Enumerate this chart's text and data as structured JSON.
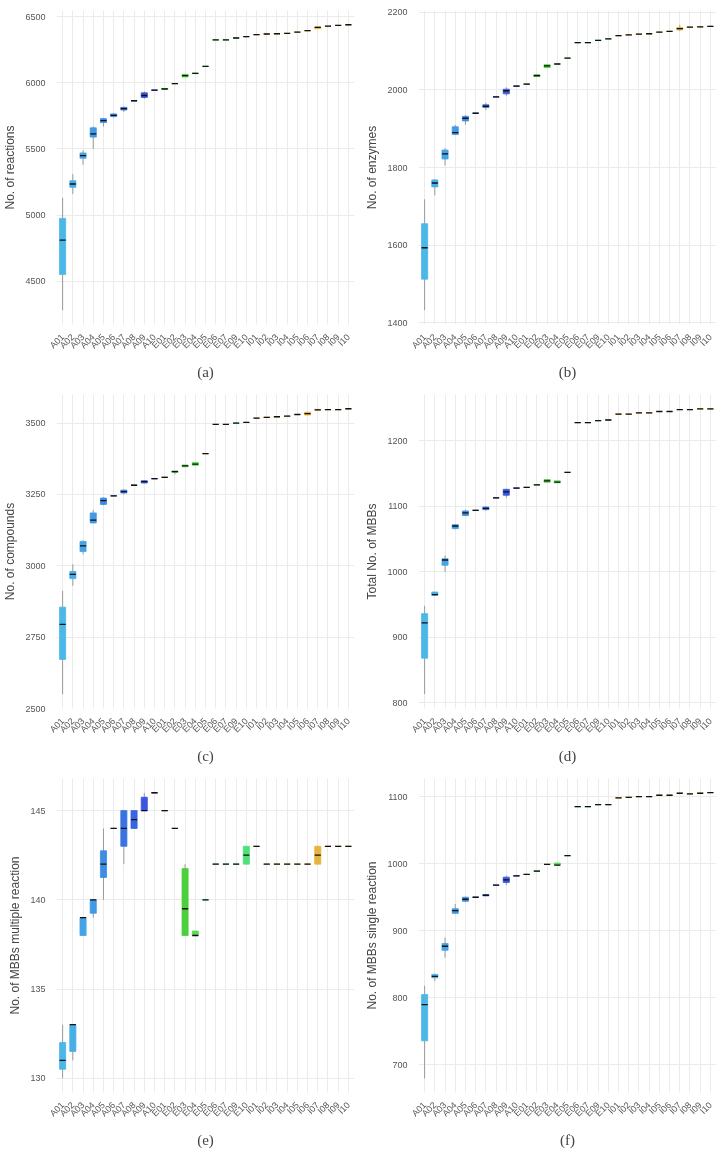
{
  "chart_data": [
    {
      "type": "box",
      "ylabel": "No. of reactions",
      "annotations": [
        "(a)"
      ],
      "categories": [
        "A01",
        "A02",
        "A03",
        "A04",
        "A05",
        "A06",
        "A07",
        "A08",
        "A09",
        "A10",
        "E01",
        "E02",
        "E03",
        "E04",
        "E05",
        "E06",
        "E07",
        "E09",
        "E10",
        "I01",
        "I02",
        "I03",
        "I04",
        "I05",
        "I06",
        "I07",
        "I08",
        "I09",
        "I10"
      ],
      "colors": [
        "#4bb8e8",
        "#48aee6",
        "#45a4e5",
        "#4299e4",
        "#3f8de3",
        "#3c80e2",
        "#3a73e1",
        "#3866e1",
        "#3a55e0",
        "#3b4ae0",
        "#2e9e2e",
        "#38b038",
        "#4ccf3c",
        "#55dd50",
        "#5ae060",
        "#5ce068",
        "#5ce070",
        "#5ce078",
        "#50e07a",
        "#e8a838",
        "#e8ac3c",
        "#e8b040",
        "#e8b040",
        "#e8b444",
        "#e6b444",
        "#e6b440",
        "#deb048",
        "#d8b04c",
        "#d4b050"
      ],
      "ylim": [
        4172,
        6548
      ],
      "yticks": [
        4500,
        5000,
        5500,
        6000,
        6500
      ],
      "grid": true,
      "boxes": [
        {
          "low": 4280,
          "q1": 4550,
          "median": 4810,
          "q3": 4975,
          "high": 5130
        },
        {
          "low": 5160,
          "q1": 5210,
          "median": 5235,
          "q3": 5260,
          "high": 5310
        },
        {
          "low": 5380,
          "q1": 5430,
          "median": 5450,
          "q3": 5470,
          "high": 5490
        },
        {
          "low": 5500,
          "q1": 5590,
          "median": 5615,
          "q3": 5660,
          "high": 5670
        },
        {
          "low": 5670,
          "q1": 5700,
          "median": 5715,
          "q3": 5730,
          "high": 5735
        },
        {
          "low": 5740,
          "q1": 5745,
          "median": 5755,
          "q3": 5765,
          "high": 5770
        },
        {
          "low": 5780,
          "q1": 5795,
          "median": 5805,
          "q3": 5815,
          "high": 5820
        },
        {
          "low": 5865,
          "q1": 5865,
          "median": 5865,
          "q3": 5865,
          "high": 5865
        },
        {
          "low": 5880,
          "q1": 5890,
          "median": 5905,
          "q3": 5925,
          "high": 5935
        },
        {
          "low": 5945,
          "q1": 5945,
          "median": 5945,
          "q3": 5945,
          "high": 5945
        },
        {
          "low": 5950,
          "q1": 5950,
          "median": 5955,
          "q3": 5958,
          "high": 5958
        },
        {
          "low": 5995,
          "q1": 5995,
          "median": 5995,
          "q3": 5995,
          "high": 5995
        },
        {
          "low": 6045,
          "q1": 6045,
          "median": 6055,
          "q3": 6065,
          "high": 6065
        },
        {
          "low": 6070,
          "q1": 6070,
          "median": 6072,
          "q3": 6075,
          "high": 6075
        },
        {
          "low": 6125,
          "q1": 6125,
          "median": 6125,
          "q3": 6125,
          "high": 6125
        },
        {
          "low": 6325,
          "q1": 6325,
          "median": 6325,
          "q3": 6325,
          "high": 6325
        },
        {
          "low": 6325,
          "q1": 6325,
          "median": 6325,
          "q3": 6325,
          "high": 6325
        },
        {
          "low": 6340,
          "q1": 6340,
          "median": 6340,
          "q3": 6340,
          "high": 6340
        },
        {
          "low": 6350,
          "q1": 6350,
          "median": 6350,
          "q3": 6350,
          "high": 6350
        },
        {
          "low": 6365,
          "q1": 6365,
          "median": 6365,
          "q3": 6365,
          "high": 6365
        },
        {
          "low": 6370,
          "q1": 6370,
          "median": 6370,
          "q3": 6370,
          "high": 6370
        },
        {
          "low": 6372,
          "q1": 6372,
          "median": 6372,
          "q3": 6372,
          "high": 6372
        },
        {
          "low": 6375,
          "q1": 6375,
          "median": 6375,
          "q3": 6375,
          "high": 6375
        },
        {
          "low": 6385,
          "q1": 6385,
          "median": 6385,
          "q3": 6385,
          "high": 6385
        },
        {
          "low": 6395,
          "q1": 6395,
          "median": 6395,
          "q3": 6395,
          "high": 6395
        },
        {
          "low": 6410,
          "q1": 6410,
          "median": 6420,
          "q3": 6425,
          "high": 6425
        },
        {
          "low": 6430,
          "q1": 6430,
          "median": 6430,
          "q3": 6430,
          "high": 6430
        },
        {
          "low": 6435,
          "q1": 6435,
          "median": 6435,
          "q3": 6435,
          "high": 6435
        },
        {
          "low": 6440,
          "q1": 6440,
          "median": 6440,
          "q3": 6440,
          "high": 6440
        }
      ]
    },
    {
      "type": "box",
      "ylabel": "No. of enzymes",
      "annotations": [
        "(b)"
      ],
      "categories": [
        "A01",
        "A02",
        "A03",
        "A04",
        "A05",
        "A06",
        "A07",
        "A08",
        "A09",
        "A10",
        "E01",
        "E02",
        "E03",
        "E04",
        "E05",
        "E06",
        "E07",
        "E09",
        "E10",
        "I01",
        "I02",
        "I03",
        "I04",
        "I05",
        "I06",
        "I07",
        "I08",
        "I09",
        "I10"
      ],
      "colors": [
        "#4bb8e8",
        "#48aee6",
        "#45a4e5",
        "#4299e4",
        "#3f8de3",
        "#3c80e2",
        "#3a73e1",
        "#3866e1",
        "#3a55e0",
        "#3b4ae0",
        "#2e9e2e",
        "#38b038",
        "#4ccf3c",
        "#55dd50",
        "#5ae060",
        "#5ce068",
        "#5ce070",
        "#5ce078",
        "#50e07a",
        "#e8a838",
        "#e8ac3c",
        "#e8b040",
        "#e8b040",
        "#e8b444",
        "#e6b444",
        "#e6b440",
        "#deb048",
        "#d8b04c",
        "#d4b050"
      ],
      "ylim": [
        1395,
        2205
      ],
      "yticks": [
        1400,
        1600,
        1800,
        2000,
        2200
      ],
      "grid": true,
      "boxes": [
        {
          "low": 1432,
          "q1": 1512,
          "median": 1593,
          "q3": 1655,
          "high": 1718
        },
        {
          "low": 1728,
          "q1": 1750,
          "median": 1760,
          "q3": 1768,
          "high": 1770
        },
        {
          "low": 1805,
          "q1": 1822,
          "median": 1835,
          "q3": 1845,
          "high": 1850
        },
        {
          "low": 1885,
          "q1": 1885,
          "median": 1890,
          "q3": 1905,
          "high": 1910
        },
        {
          "low": 1910,
          "q1": 1920,
          "median": 1927,
          "q3": 1932,
          "high": 1935
        },
        {
          "low": 1940,
          "q1": 1940,
          "median": 1940,
          "q3": 1940,
          "high": 1940
        },
        {
          "low": 1948,
          "q1": 1955,
          "median": 1958,
          "q3": 1962,
          "high": 1967
        },
        {
          "low": 1982,
          "q1": 1982,
          "median": 1982,
          "q3": 1982,
          "high": 1982
        },
        {
          "low": 1985,
          "q1": 1990,
          "median": 1998,
          "q3": 2002,
          "high": 2007
        },
        {
          "low": 2010,
          "q1": 2010,
          "median": 2010,
          "q3": 2010,
          "high": 2010
        },
        {
          "low": 2015,
          "q1": 2015,
          "median": 2015,
          "q3": 2015,
          "high": 2015
        },
        {
          "low": 2035,
          "q1": 2035,
          "median": 2037,
          "q3": 2039,
          "high": 2039
        },
        {
          "low": 2058,
          "q1": 2058,
          "median": 2062,
          "q3": 2065,
          "high": 2065
        },
        {
          "low": 2067,
          "q1": 2067,
          "median": 2067,
          "q3": 2067,
          "high": 2067
        },
        {
          "low": 2082,
          "q1": 2082,
          "median": 2082,
          "q3": 2082,
          "high": 2082
        },
        {
          "low": 2122,
          "q1": 2122,
          "median": 2122,
          "q3": 2122,
          "high": 2122
        },
        {
          "low": 2122,
          "q1": 2122,
          "median": 2122,
          "q3": 2122,
          "high": 2122
        },
        {
          "low": 2128,
          "q1": 2128,
          "median": 2128,
          "q3": 2128,
          "high": 2128
        },
        {
          "low": 2132,
          "q1": 2132,
          "median": 2132,
          "q3": 2132,
          "high": 2132
        },
        {
          "low": 2140,
          "q1": 2140,
          "median": 2140,
          "q3": 2140,
          "high": 2140
        },
        {
          "low": 2142,
          "q1": 2142,
          "median": 2142,
          "q3": 2142,
          "high": 2142
        },
        {
          "low": 2144,
          "q1": 2144,
          "median": 2144,
          "q3": 2144,
          "high": 2144
        },
        {
          "low": 2145,
          "q1": 2145,
          "median": 2145,
          "q3": 2145,
          "high": 2145
        },
        {
          "low": 2149,
          "q1": 2149,
          "median": 2149,
          "q3": 2149,
          "high": 2149
        },
        {
          "low": 2151,
          "q1": 2151,
          "median": 2151,
          "q3": 2151,
          "high": 2151
        },
        {
          "low": 2152,
          "q1": 2155,
          "median": 2158,
          "q3": 2161,
          "high": 2168
        },
        {
          "low": 2162,
          "q1": 2162,
          "median": 2162,
          "q3": 2162,
          "high": 2162
        },
        {
          "low": 2163,
          "q1": 2163,
          "median": 2163,
          "q3": 2163,
          "high": 2163
        },
        {
          "low": 2164,
          "q1": 2164,
          "median": 2164,
          "q3": 2164,
          "high": 2164
        }
      ]
    },
    {
      "type": "box",
      "ylabel": "No. of compounds",
      "annotations": [
        "(c)"
      ],
      "categories": [
        "A01",
        "A02",
        "A03",
        "A04",
        "A05",
        "A06",
        "A07",
        "A08",
        "A09",
        "A10",
        "E01",
        "E02",
        "E03",
        "E04",
        "E05",
        "E06",
        "E07",
        "E09",
        "E10",
        "I01",
        "I02",
        "I03",
        "I04",
        "I05",
        "I06",
        "I07",
        "I08",
        "I09",
        "I10"
      ],
      "colors": [
        "#4bb8e8",
        "#48aee6",
        "#45a4e5",
        "#4299e4",
        "#3f8de3",
        "#3c80e2",
        "#3a73e1",
        "#3866e1",
        "#3a55e0",
        "#3b4ae0",
        "#2e9e2e",
        "#38b038",
        "#4ccf3c",
        "#55dd50",
        "#5ae060",
        "#5ce068",
        "#5ce070",
        "#5ce078",
        "#50e07a",
        "#e8a838",
        "#e8ac3c",
        "#e8b040",
        "#e8b040",
        "#e8b444",
        "#e6b444",
        "#e6b440",
        "#deb048",
        "#d8b04c",
        "#d4b050"
      ],
      "ylim": [
        2500,
        3600
      ],
      "yticks": [
        2500,
        2750,
        3000,
        3250,
        3500
      ],
      "grid": true,
      "boxes": [
        {
          "low": 2550,
          "q1": 2672,
          "median": 2795,
          "q3": 2855,
          "high": 2912
        },
        {
          "low": 2930,
          "q1": 2955,
          "median": 2970,
          "q3": 2980,
          "high": 3005
        },
        {
          "low": 3040,
          "q1": 3050,
          "median": 3070,
          "q3": 3085,
          "high": 3090
        },
        {
          "low": 3150,
          "q1": 3150,
          "median": 3160,
          "q3": 3185,
          "high": 3195
        },
        {
          "low": 3212,
          "q1": 3215,
          "median": 3228,
          "q3": 3237,
          "high": 3240
        },
        {
          "low": 3245,
          "q1": 3245,
          "median": 3245,
          "q3": 3245,
          "high": 3245
        },
        {
          "low": 3250,
          "q1": 3255,
          "median": 3260,
          "q3": 3265,
          "high": 3268
        },
        {
          "low": 3282,
          "q1": 3282,
          "median": 3282,
          "q3": 3282,
          "high": 3282
        },
        {
          "low": 3288,
          "q1": 3290,
          "median": 3295,
          "q3": 3298,
          "high": 3300
        },
        {
          "low": 3305,
          "q1": 3305,
          "median": 3305,
          "q3": 3305,
          "high": 3305
        },
        {
          "low": 3310,
          "q1": 3310,
          "median": 3310,
          "q3": 3310,
          "high": 3310
        },
        {
          "low": 3320,
          "q1": 3328,
          "median": 3330,
          "q3": 3332,
          "high": 3332
        },
        {
          "low": 3347,
          "q1": 3347,
          "median": 3350,
          "q3": 3353,
          "high": 3353
        },
        {
          "low": 3352,
          "q1": 3352,
          "median": 3356,
          "q3": 3362,
          "high": 3362
        },
        {
          "low": 3393,
          "q1": 3393,
          "median": 3393,
          "q3": 3393,
          "high": 3393
        },
        {
          "low": 3495,
          "q1": 3495,
          "median": 3495,
          "q3": 3495,
          "high": 3495
        },
        {
          "low": 3495,
          "q1": 3495,
          "median": 3495,
          "q3": 3495,
          "high": 3495
        },
        {
          "low": 3500,
          "q1": 3500,
          "median": 3500,
          "q3": 3500,
          "high": 3500
        },
        {
          "low": 3502,
          "q1": 3502,
          "median": 3502,
          "q3": 3502,
          "high": 3502
        },
        {
          "low": 3517,
          "q1": 3517,
          "median": 3517,
          "q3": 3517,
          "high": 3517
        },
        {
          "low": 3520,
          "q1": 3520,
          "median": 3520,
          "q3": 3520,
          "high": 3520
        },
        {
          "low": 3522,
          "q1": 3522,
          "median": 3522,
          "q3": 3522,
          "high": 3522
        },
        {
          "low": 3524,
          "q1": 3524,
          "median": 3524,
          "q3": 3524,
          "high": 3524
        },
        {
          "low": 3530,
          "q1": 3530,
          "median": 3530,
          "q3": 3530,
          "high": 3530
        },
        {
          "low": 3528,
          "q1": 3528,
          "median": 3533,
          "q3": 3538,
          "high": 3538
        },
        {
          "low": 3545,
          "q1": 3545,
          "median": 3546,
          "q3": 3548,
          "high": 3548
        },
        {
          "low": 3547,
          "q1": 3547,
          "median": 3547,
          "q3": 3547,
          "high": 3547
        },
        {
          "low": 3547,
          "q1": 3547,
          "median": 3547,
          "q3": 3547,
          "high": 3547
        },
        {
          "low": 3550,
          "q1": 3550,
          "median": 3550,
          "q3": 3550,
          "high": 3550
        }
      ]
    },
    {
      "type": "box",
      "ylabel": "Total No. of MBBs",
      "annotations": [
        "(d)"
      ],
      "categories": [
        "A01",
        "A02",
        "A03",
        "A04",
        "A05",
        "A06",
        "A07",
        "A08",
        "A09",
        "A10",
        "E01",
        "E02",
        "E03",
        "E04",
        "E05",
        "E06",
        "E07",
        "E09",
        "E10",
        "I01",
        "I02",
        "I03",
        "I04",
        "I05",
        "I06",
        "I07",
        "I08",
        "I09",
        "I10"
      ],
      "colors": [
        "#4bb8e8",
        "#48aee6",
        "#45a4e5",
        "#4299e4",
        "#3f8de3",
        "#3c80e2",
        "#3a73e1",
        "#3866e1",
        "#3a55e0",
        "#3b4ae0",
        "#2e9e2e",
        "#38b038",
        "#4ccf3c",
        "#55dd50",
        "#5ae060",
        "#5ce068",
        "#5ce070",
        "#5ce078",
        "#50e07a",
        "#e8a838",
        "#e8ac3c",
        "#e8b040",
        "#e8b040",
        "#e8b444",
        "#e6b444",
        "#e6b440",
        "#deb048",
        "#d8b04c",
        "#d4b050"
      ],
      "ylim": [
        791,
        1271
      ],
      "yticks": [
        800,
        900,
        1000,
        1100,
        1200
      ],
      "grid": true,
      "boxes": [
        {
          "low": 813,
          "q1": 868,
          "median": 922,
          "q3": 936,
          "high": 948
        },
        {
          "low": 963,
          "q1": 964,
          "median": 965,
          "q3": 969,
          "high": 969
        },
        {
          "low": 1000,
          "q1": 1010,
          "median": 1018,
          "q3": 1020,
          "high": 1025
        },
        {
          "low": 1065,
          "q1": 1066,
          "median": 1070,
          "q3": 1072,
          "high": 1073
        },
        {
          "low": 1085,
          "q1": 1086,
          "median": 1090,
          "q3": 1093,
          "high": 1095
        },
        {
          "low": 1094,
          "q1": 1094,
          "median": 1094,
          "q3": 1094,
          "high": 1094
        },
        {
          "low": 1093,
          "q1": 1095,
          "median": 1097,
          "q3": 1099,
          "high": 1100
        },
        {
          "low": 1113,
          "q1": 1113,
          "median": 1113,
          "q3": 1113,
          "high": 1113
        },
        {
          "low": 1113,
          "q1": 1117,
          "median": 1122,
          "q3": 1126,
          "high": 1127
        },
        {
          "low": 1128,
          "q1": 1128,
          "median": 1128,
          "q3": 1128,
          "high": 1128
        },
        {
          "low": 1129,
          "q1": 1129,
          "median": 1129,
          "q3": 1129,
          "high": 1129
        },
        {
          "low": 1133,
          "q1": 1133,
          "median": 1133,
          "q3": 1133,
          "high": 1133
        },
        {
          "low": 1137,
          "q1": 1137,
          "median": 1139,
          "q3": 1141,
          "high": 1141
        },
        {
          "low": 1136,
          "q1": 1136,
          "median": 1137,
          "q3": 1139,
          "high": 1139
        },
        {
          "low": 1152,
          "q1": 1152,
          "median": 1152,
          "q3": 1152,
          "high": 1152
        },
        {
          "low": 1228,
          "q1": 1228,
          "median": 1228,
          "q3": 1228,
          "high": 1228
        },
        {
          "low": 1228,
          "q1": 1228,
          "median": 1228,
          "q3": 1228,
          "high": 1228
        },
        {
          "low": 1231,
          "q1": 1231,
          "median": 1231,
          "q3": 1231,
          "high": 1231
        },
        {
          "low": 1232,
          "q1": 1232,
          "median": 1232,
          "q3": 1232,
          "high": 1232
        },
        {
          "low": 1241,
          "q1": 1241,
          "median": 1241,
          "q3": 1241,
          "high": 1241
        },
        {
          "low": 1241,
          "q1": 1241,
          "median": 1241,
          "q3": 1241,
          "high": 1241
        },
        {
          "low": 1243,
          "q1": 1243,
          "median": 1243,
          "q3": 1243,
          "high": 1243
        },
        {
          "low": 1243,
          "q1": 1243,
          "median": 1243,
          "q3": 1243,
          "high": 1243
        },
        {
          "low": 1245,
          "q1": 1245,
          "median": 1245,
          "q3": 1245,
          "high": 1245
        },
        {
          "low": 1245,
          "q1": 1245,
          "median": 1245,
          "q3": 1245,
          "high": 1245
        },
        {
          "low": 1248,
          "q1": 1248,
          "median": 1248,
          "q3": 1248,
          "high": 1248
        },
        {
          "low": 1248,
          "q1": 1248,
          "median": 1248,
          "q3": 1248,
          "high": 1248
        },
        {
          "low": 1249,
          "q1": 1249,
          "median": 1249,
          "q3": 1249,
          "high": 1249
        },
        {
          "low": 1249,
          "q1": 1249,
          "median": 1249,
          "q3": 1249,
          "high": 1249
        }
      ]
    },
    {
      "type": "box",
      "ylabel": "No. of MBBs multiple reaction",
      "annotations": [
        "(e)"
      ],
      "categories": [
        "A01",
        "A02",
        "A03",
        "A04",
        "A05",
        "A06",
        "A07",
        "A08",
        "A09",
        "A10",
        "E01",
        "E02",
        "E03",
        "E04",
        "E05",
        "E06",
        "E07",
        "E09",
        "E10",
        "I01",
        "I02",
        "I03",
        "I04",
        "I05",
        "I06",
        "I07",
        "I08",
        "I09",
        "I10"
      ],
      "colors": [
        "#4bb8e8",
        "#48aee6",
        "#45a4e5",
        "#4299e4",
        "#3f8de3",
        "#3c80e2",
        "#3a73e1",
        "#3866e1",
        "#3a55e0",
        "#3b4ae0",
        "#2e9e2e",
        "#38b038",
        "#4ccf3c",
        "#55dd50",
        "#5ae060",
        "#5ce068",
        "#5ce070",
        "#5ce078",
        "#50e07a",
        "#e8a838",
        "#e8ac3c",
        "#e8b040",
        "#e8b040",
        "#e8b444",
        "#e6b444",
        "#e6b440",
        "#deb048",
        "#d8b04c",
        "#d4b050"
      ],
      "ylim": [
        129.2,
        146.8
      ],
      "yticks": [
        130,
        135,
        140,
        145
      ],
      "grid": true,
      "boxes": [
        {
          "low": 130,
          "q1": 130.5,
          "median": 131,
          "q3": 132,
          "high": 133
        },
        {
          "low": 131,
          "q1": 131.5,
          "median": 133,
          "q3": 133,
          "high": 133
        },
        {
          "low": 138,
          "q1": 138,
          "median": 139,
          "q3": 139,
          "high": 139
        },
        {
          "low": 139,
          "q1": 139.25,
          "median": 140,
          "q3": 140,
          "high": 140
        },
        {
          "low": 140,
          "q1": 141.25,
          "median": 142,
          "q3": 142.75,
          "high": 144
        },
        {
          "low": 144,
          "q1": 144,
          "median": 144,
          "q3": 144,
          "high": 144
        },
        {
          "low": 142,
          "q1": 143,
          "median": 144,
          "q3": 145,
          "high": 145
        },
        {
          "low": 144,
          "q1": 144,
          "median": 144.5,
          "q3": 145,
          "high": 145
        },
        {
          "low": 145,
          "q1": 145,
          "median": 145,
          "q3": 145.75,
          "high": 146
        },
        {
          "low": 146,
          "q1": 146,
          "median": 146,
          "q3": 146,
          "high": 146
        },
        {
          "low": 145,
          "q1": 145,
          "median": 145,
          "q3": 145,
          "high": 145
        },
        {
          "low": 144,
          "q1": 144,
          "median": 144,
          "q3": 144,
          "high": 144
        },
        {
          "low": 138,
          "q1": 138,
          "median": 139.5,
          "q3": 141.75,
          "high": 142
        },
        {
          "low": 138,
          "q1": 138,
          "median": 138,
          "q3": 138.25,
          "high": 138.25
        },
        {
          "low": 140,
          "q1": 140,
          "median": 140,
          "q3": 140,
          "high": 140
        },
        {
          "low": 142,
          "q1": 142,
          "median": 142,
          "q3": 142,
          "high": 142
        },
        {
          "low": 142,
          "q1": 142,
          "median": 142,
          "q3": 142,
          "high": 142
        },
        {
          "low": 142,
          "q1": 142,
          "median": 142,
          "q3": 142,
          "high": 142
        },
        {
          "low": 142,
          "q1": 142,
          "median": 142.5,
          "q3": 143,
          "high": 143
        },
        {
          "low": 143,
          "q1": 143,
          "median": 143,
          "q3": 143,
          "high": 143
        },
        {
          "low": 142,
          "q1": 142,
          "median": 142,
          "q3": 142,
          "high": 142
        },
        {
          "low": 142,
          "q1": 142,
          "median": 142,
          "q3": 142,
          "high": 142
        },
        {
          "low": 142,
          "q1": 142,
          "median": 142,
          "q3": 142,
          "high": 142
        },
        {
          "low": 142,
          "q1": 142,
          "median": 142,
          "q3": 142,
          "high": 142
        },
        {
          "low": 142,
          "q1": 142,
          "median": 142,
          "q3": 142,
          "high": 142
        },
        {
          "low": 142,
          "q1": 142,
          "median": 142.5,
          "q3": 143,
          "high": 143
        },
        {
          "low": 143,
          "q1": 143,
          "median": 143,
          "q3": 143,
          "high": 143
        },
        {
          "low": 143,
          "q1": 143,
          "median": 143,
          "q3": 143,
          "high": 143
        },
        {
          "low": 143,
          "q1": 143,
          "median": 143,
          "q3": 143,
          "high": 143
        }
      ]
    },
    {
      "type": "box",
      "ylabel": "No. of MBBs single reaction",
      "annotations": [
        "(f)"
      ],
      "categories": [
        "A01",
        "A02",
        "A03",
        "A04",
        "A05",
        "A06",
        "A07",
        "A08",
        "A09",
        "A10",
        "E01",
        "E02",
        "E03",
        "E04",
        "E05",
        "E06",
        "E07",
        "E09",
        "E10",
        "I01",
        "I02",
        "I03",
        "I04",
        "I05",
        "I06",
        "I07",
        "I08",
        "I09",
        "I10"
      ],
      "colors": [
        "#4bb8e8",
        "#48aee6",
        "#45a4e5",
        "#4299e4",
        "#3f8de3",
        "#3c80e2",
        "#3a73e1",
        "#3866e1",
        "#3a55e0",
        "#3b4ae0",
        "#2e9e2e",
        "#38b038",
        "#4ccf3c",
        "#55dd50",
        "#5ae060",
        "#5ce068",
        "#5ce070",
        "#5ce078",
        "#50e07a",
        "#e8a838",
        "#e8ac3c",
        "#e8b040",
        "#e8b040",
        "#e8b444",
        "#e6b444",
        "#e6b440",
        "#deb048",
        "#d8b04c",
        "#d4b050"
      ],
      "ylim": [
        659,
        1127
      ],
      "yticks": [
        700,
        800,
        900,
        1000,
        1100
      ],
      "grid": true,
      "boxes": [
        {
          "low": 680,
          "q1": 736,
          "median": 790,
          "q3": 805,
          "high": 818
        },
        {
          "low": 825,
          "q1": 830,
          "median": 832,
          "q3": 835,
          "high": 836
        },
        {
          "low": 860,
          "q1": 871,
          "median": 877,
          "q3": 881,
          "high": 890
        },
        {
          "low": 925,
          "q1": 926,
          "median": 930,
          "q3": 933,
          "high": 940
        },
        {
          "low": 943,
          "q1": 944,
          "median": 947,
          "q3": 950,
          "high": 951
        },
        {
          "low": 950,
          "q1": 950,
          "median": 950,
          "q3": 950,
          "high": 950
        },
        {
          "low": 952,
          "q1": 952,
          "median": 953,
          "q3": 954,
          "high": 954
        },
        {
          "low": 968,
          "q1": 968,
          "median": 968,
          "q3": 968,
          "high": 968
        },
        {
          "low": 968,
          "q1": 972,
          "median": 976,
          "q3": 980,
          "high": 982
        },
        {
          "low": 982,
          "q1": 982,
          "median": 982,
          "q3": 982,
          "high": 982
        },
        {
          "low": 984,
          "q1": 984,
          "median": 984,
          "q3": 984,
          "high": 984
        },
        {
          "low": 989,
          "q1": 989,
          "median": 989,
          "q3": 989,
          "high": 989
        },
        {
          "low": 999,
          "q1": 999,
          "median": 999,
          "q3": 999,
          "high": 999
        },
        {
          "low": 998,
          "q1": 998,
          "median": 998,
          "q3": 1001,
          "high": 1001
        },
        {
          "low": 1012,
          "q1": 1012,
          "median": 1012,
          "q3": 1012,
          "high": 1012
        },
        {
          "low": 1085,
          "q1": 1085,
          "median": 1085,
          "q3": 1085,
          "high": 1085
        },
        {
          "low": 1085,
          "q1": 1085,
          "median": 1085,
          "q3": 1085,
          "high": 1085
        },
        {
          "low": 1088,
          "q1": 1088,
          "median": 1088,
          "q3": 1088,
          "high": 1088
        },
        {
          "low": 1088,
          "q1": 1088,
          "median": 1088,
          "q3": 1088,
          "high": 1088
        },
        {
          "low": 1098,
          "q1": 1098,
          "median": 1098,
          "q3": 1098,
          "high": 1098
        },
        {
          "low": 1099,
          "q1": 1099,
          "median": 1099,
          "q3": 1099,
          "high": 1099
        },
        {
          "low": 1100,
          "q1": 1100,
          "median": 1100,
          "q3": 1100,
          "high": 1100
        },
        {
          "low": 1100,
          "q1": 1100,
          "median": 1100,
          "q3": 1100,
          "high": 1100
        },
        {
          "low": 1102,
          "q1": 1102,
          "median": 1102,
          "q3": 1102,
          "high": 1102
        },
        {
          "low": 1102,
          "q1": 1102,
          "median": 1102,
          "q3": 1102,
          "high": 1102
        },
        {
          "low": 1105,
          "q1": 1105,
          "median": 1105,
          "q3": 1105,
          "high": 1105
        },
        {
          "low": 1104,
          "q1": 1104,
          "median": 1104,
          "q3": 1104,
          "high": 1104
        },
        {
          "low": 1105,
          "q1": 1105,
          "median": 1105,
          "q3": 1105,
          "high": 1105
        },
        {
          "low": 1106,
          "q1": 1106,
          "median": 1106,
          "q3": 1106,
          "high": 1106
        }
      ]
    }
  ]
}
